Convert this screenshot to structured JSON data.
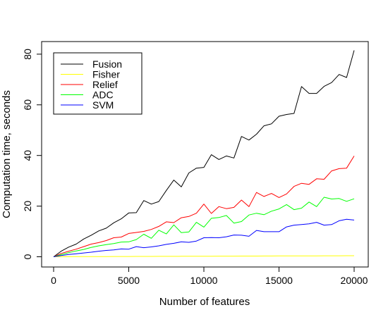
{
  "chart_data": {
    "type": "line",
    "title": "",
    "xlabel": "Number of features",
    "ylabel": "Computation time, seconds",
    "xlim": [
      0,
      20000
    ],
    "ylim": [
      0,
      81.5
    ],
    "x_ticks": [
      0,
      5000,
      10000,
      15000,
      20000
    ],
    "y_ticks": [
      0,
      20,
      40,
      60,
      80
    ],
    "grid": false,
    "legend_position": "top-left",
    "x": [
      0,
      500,
      1000,
      1500,
      2000,
      2500,
      3000,
      3500,
      4000,
      4500,
      5000,
      5500,
      6000,
      6500,
      7000,
      7500,
      8000,
      8500,
      9000,
      9500,
      10000,
      10500,
      11000,
      11500,
      12000,
      12500,
      13000,
      13500,
      14000,
      14500,
      15000,
      15500,
      16000,
      16500,
      17000,
      17500,
      18000,
      18500,
      19000,
      19500,
      20000
    ],
    "series": [
      {
        "name": "Fusion",
        "color": "#000000",
        "values": [
          0,
          2.2,
          3.8,
          5.0,
          7.0,
          8.5,
          10.2,
          11.3,
          13.4,
          15.0,
          17.3,
          17.4,
          22.2,
          20.8,
          21.8,
          26.2,
          30.3,
          27.6,
          33.1,
          35.0,
          35.3,
          40.3,
          38.4,
          39.8,
          39.0,
          47.5,
          46.1,
          48.4,
          51.7,
          52.5,
          55.5,
          56.2,
          56.6,
          67.2,
          64.5,
          64.5,
          67.3,
          68.8,
          72.0,
          70.8,
          81.5
        ]
      },
      {
        "name": "Fisher",
        "color": "#ffff00",
        "values": [
          0,
          0.02,
          0.03,
          0.05,
          0.06,
          0.07,
          0.08,
          0.09,
          0.1,
          0.11,
          0.12,
          0.13,
          0.14,
          0.15,
          0.16,
          0.17,
          0.18,
          0.19,
          0.2,
          0.21,
          0.22,
          0.23,
          0.24,
          0.25,
          0.26,
          0.27,
          0.28,
          0.29,
          0.3,
          0.31,
          0.32,
          0.33,
          0.34,
          0.35,
          0.36,
          0.37,
          0.38,
          0.39,
          0.4,
          0.41,
          0.42
        ]
      },
      {
        "name": "Relief",
        "color": "#ff0000",
        "values": [
          0,
          1.3,
          2.2,
          3.0,
          4.0,
          5.0,
          5.6,
          6.4,
          7.5,
          7.8,
          9.2,
          9.6,
          10.0,
          10.8,
          12.0,
          13.8,
          13.5,
          15.4,
          15.9,
          17.2,
          20.8,
          17.1,
          19.8,
          19.0,
          19.5,
          22.4,
          19.8,
          25.4,
          23.8,
          25.0,
          23.4,
          24.8,
          27.8,
          29.0,
          28.6,
          30.8,
          30.6,
          33.9,
          34.8,
          35.0,
          39.8
        ]
      },
      {
        "name": "ADC",
        "color": "#00ff00",
        "values": [
          0,
          0.8,
          1.6,
          2.3,
          2.9,
          3.7,
          4.3,
          4.8,
          5.2,
          5.8,
          5.9,
          6.8,
          8.9,
          7.3,
          10.5,
          9.0,
          12.6,
          9.5,
          9.8,
          13.6,
          11.7,
          15.2,
          15.5,
          16.3,
          13.3,
          13.9,
          16.5,
          17.2,
          16.6,
          18.0,
          18.9,
          20.6,
          18.6,
          19.2,
          21.6,
          19.8,
          23.5,
          22.8,
          23.0,
          21.9,
          22.9
        ]
      },
      {
        "name": "SVM",
        "color": "#0000ff",
        "values": [
          0,
          0.5,
          0.9,
          1.2,
          1.5,
          1.8,
          2.2,
          2.5,
          2.7,
          3.1,
          3.0,
          4.0,
          3.6,
          3.9,
          4.3,
          4.9,
          5.3,
          5.9,
          5.7,
          6.2,
          7.5,
          7.6,
          7.5,
          7.9,
          8.6,
          8.5,
          8.1,
          10.4,
          9.9,
          9.9,
          9.9,
          11.8,
          12.5,
          12.7,
          13.0,
          13.6,
          12.5,
          12.7,
          14.2,
          14.8,
          14.5
        ]
      }
    ]
  }
}
